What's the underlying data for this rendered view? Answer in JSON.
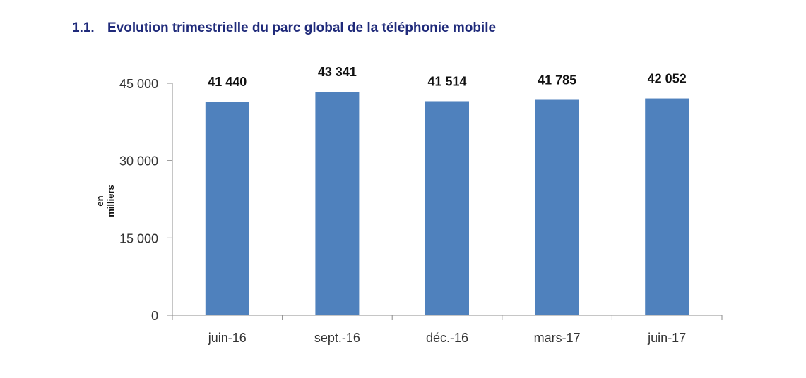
{
  "heading": {
    "number": "1.1.",
    "text": "Evolution trimestrielle du parc global de la téléphonie mobile"
  },
  "chart_data": {
    "type": "bar",
    "categories": [
      "juin-16",
      "sept.-16",
      "déc.-16",
      "mars-17",
      "juin-17"
    ],
    "values": [
      41440,
      43341,
      41514,
      41785,
      42052
    ],
    "data_labels": [
      "41 440",
      "43 341",
      "41 514",
      "41 785",
      "42 052"
    ],
    "ylabel_lines": [
      "en",
      "milliers"
    ],
    "ylim": [
      0,
      45000
    ],
    "yticks": [
      0,
      15000,
      30000,
      45000
    ],
    "ytick_labels": [
      "0",
      "15 000",
      "30 000",
      "45 000"
    ],
    "bar_color": "#4f81bd",
    "grid": false,
    "legend": "none"
  }
}
